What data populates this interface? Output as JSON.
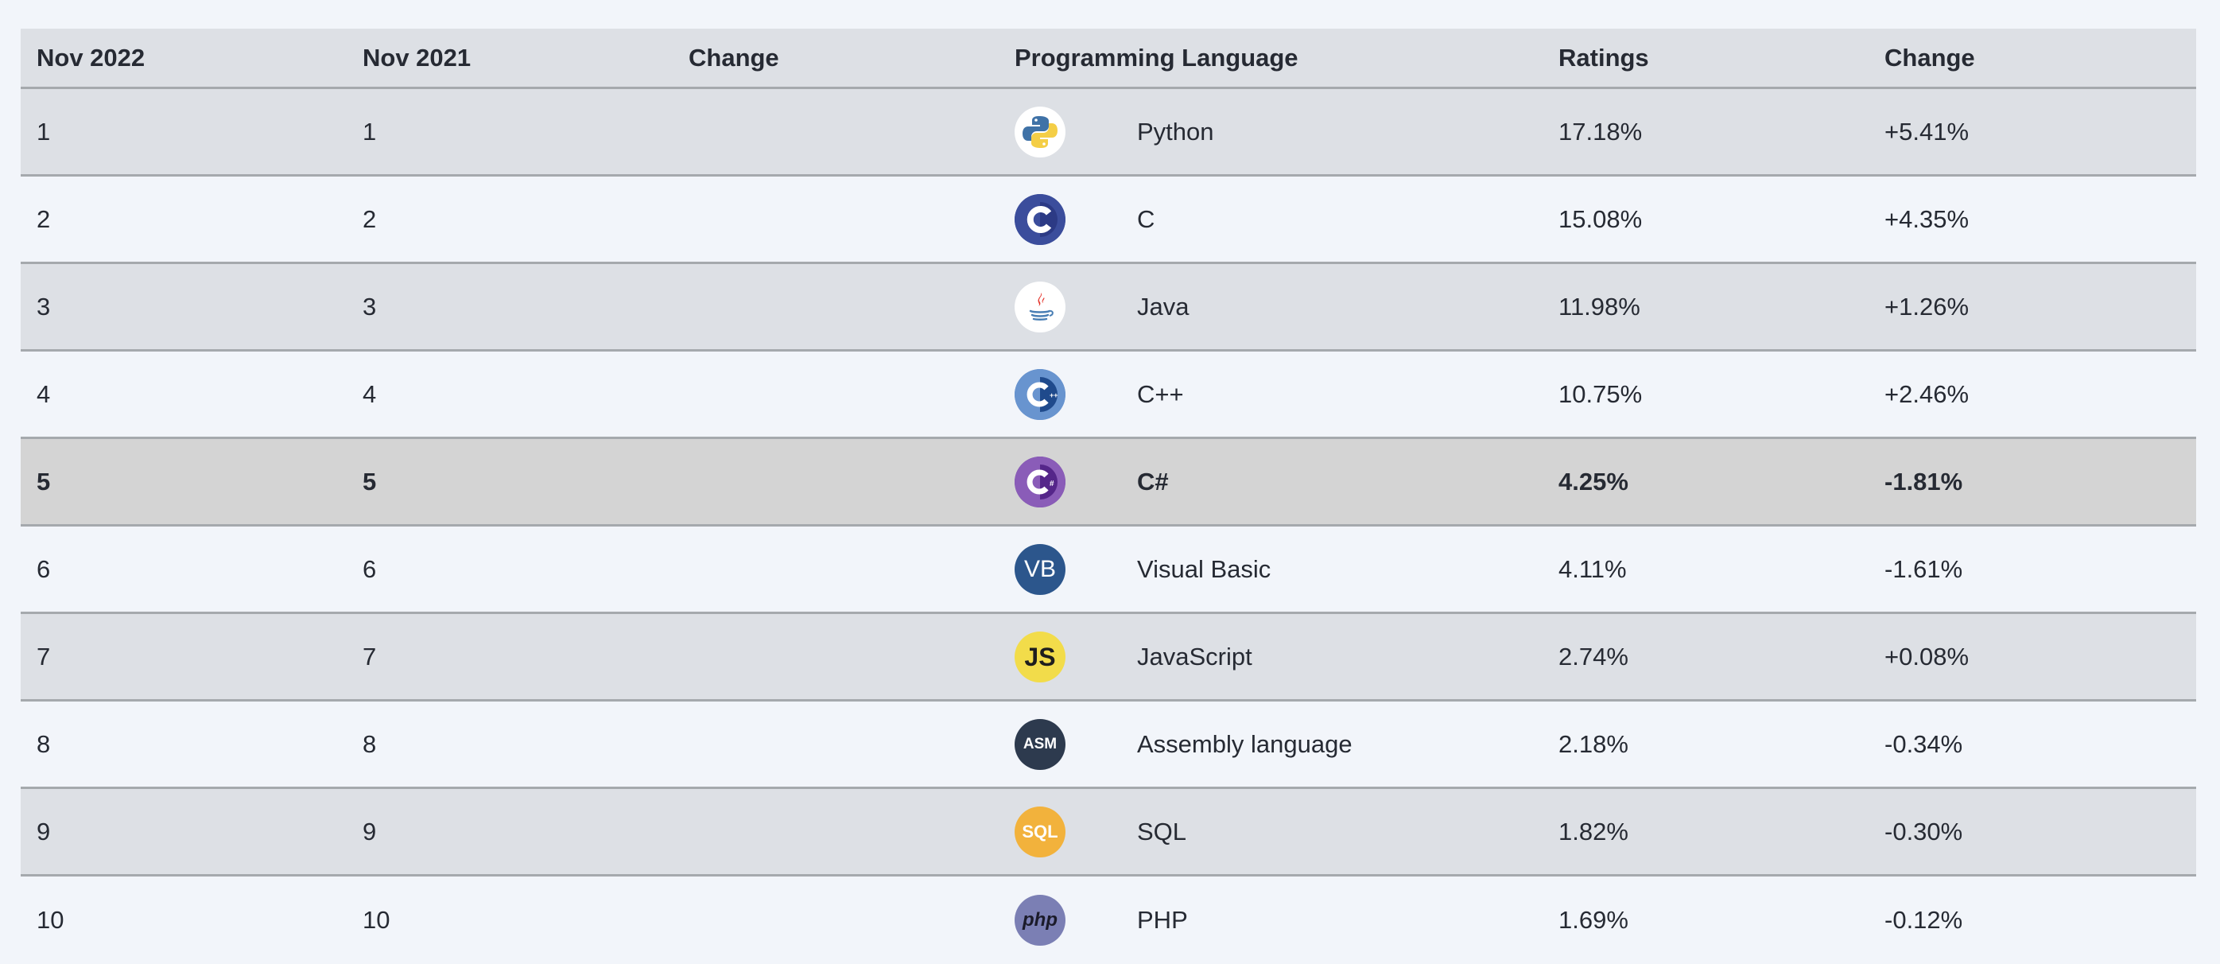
{
  "table": {
    "headers": [
      "Nov 2022",
      "Nov 2021",
      "Change",
      "Programming Language",
      "Ratings",
      "Change"
    ],
    "rows": [
      {
        "nov2022": "1",
        "nov2021": "1",
        "change": "",
        "language": "Python",
        "ratings": "17.18%",
        "delta": "+5.41%",
        "icon": "python-logo-icon"
      },
      {
        "nov2022": "2",
        "nov2021": "2",
        "change": "",
        "language": "C",
        "ratings": "15.08%",
        "delta": "+4.35%",
        "icon": "c-logo-icon"
      },
      {
        "nov2022": "3",
        "nov2021": "3",
        "change": "",
        "language": "Java",
        "ratings": "11.98%",
        "delta": "+1.26%",
        "icon": "java-logo-icon"
      },
      {
        "nov2022": "4",
        "nov2021": "4",
        "change": "",
        "language": "C++",
        "ratings": "10.75%",
        "delta": "+2.46%",
        "icon": "cpp-logo-icon"
      },
      {
        "nov2022": "5",
        "nov2021": "5",
        "change": "",
        "language": "C#",
        "ratings": "4.25%",
        "delta": "-1.81%",
        "icon": "csharp-logo-icon",
        "highlighted": true
      },
      {
        "nov2022": "6",
        "nov2021": "6",
        "change": "",
        "language": "Visual Basic",
        "ratings": "4.11%",
        "delta": "-1.61%",
        "icon": "visual-basic-logo-icon",
        "logo_text": "VB"
      },
      {
        "nov2022": "7",
        "nov2021": "7",
        "change": "",
        "language": "JavaScript",
        "ratings": "2.74%",
        "delta": "+0.08%",
        "icon": "javascript-logo-icon",
        "logo_text": "JS"
      },
      {
        "nov2022": "8",
        "nov2021": "8",
        "change": "",
        "language": "Assembly language",
        "ratings": "2.18%",
        "delta": "-0.34%",
        "icon": "assembly-logo-icon",
        "logo_text": "ASM"
      },
      {
        "nov2022": "9",
        "nov2021": "9",
        "change": "",
        "language": "SQL",
        "ratings": "1.82%",
        "delta": "-0.30%",
        "icon": "sql-logo-icon",
        "logo_text": "SQL"
      },
      {
        "nov2022": "10",
        "nov2021": "10",
        "change": "",
        "language": "PHP",
        "ratings": "1.69%",
        "delta": "-0.12%",
        "icon": "php-logo-icon",
        "logo_text": "php"
      }
    ]
  },
  "colors": {
    "row_alt": "#dde0e5",
    "row_plain": "#f2f5fa",
    "row_highlight": "#d4d4d4",
    "divider": "#a5a9ad"
  }
}
